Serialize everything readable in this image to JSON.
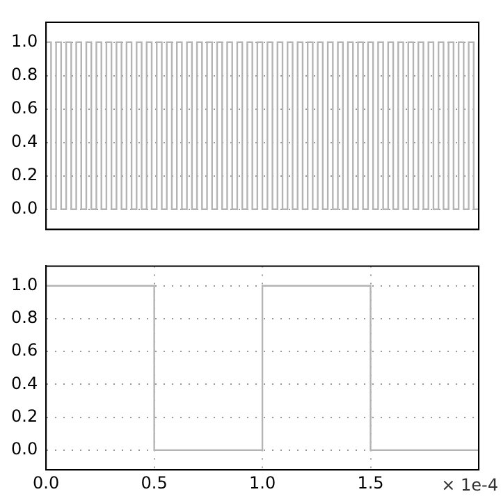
{
  "chart_data": [
    {
      "type": "step",
      "categories": [
        null,
        null,
        null,
        null,
        null,
        null,
        null,
        null,
        null,
        null,
        null,
        null,
        null,
        null,
        null,
        null,
        null,
        null,
        null,
        null,
        null,
        null,
        null,
        null,
        null,
        null,
        null,
        null,
        null,
        null,
        null,
        null,
        null,
        null,
        null,
        null,
        null,
        null,
        null,
        null,
        null,
        null,
        null,
        null,
        null,
        null,
        null,
        null,
        null,
        null,
        null,
        null,
        null,
        null,
        null,
        null,
        null,
        null,
        null,
        null,
        null,
        null,
        null,
        null,
        null,
        null,
        null,
        null,
        null,
        null,
        null,
        null,
        null,
        null,
        null,
        null,
        null,
        null,
        null,
        null,
        null,
        null,
        null,
        null,
        null,
        null,
        null
      ],
      "series": [
        {
          "color": "#b4b4b4",
          "values": [
            1,
            0,
            1,
            0,
            1,
            0,
            1,
            0,
            1,
            0,
            1,
            0,
            1,
            0,
            1,
            0,
            1,
            0,
            1,
            0,
            1,
            0,
            1,
            0,
            1,
            0,
            1,
            0,
            1,
            0,
            1,
            0,
            1,
            0,
            1,
            0,
            1,
            0,
            1,
            0,
            1,
            0,
            1,
            0,
            1,
            0,
            1,
            0,
            1,
            0,
            1,
            0,
            1,
            0,
            1,
            0,
            1,
            0,
            1,
            0,
            1,
            0,
            1,
            0,
            1,
            0,
            1,
            0,
            1,
            0,
            1,
            0,
            1,
            0,
            1,
            0,
            1,
            0,
            1,
            0,
            1,
            0,
            1,
            0,
            1,
            0,
            1
          ]
        }
      ],
      "ylim": [
        -0.12,
        1.12
      ],
      "yticks": [
        {
          "value": 0,
          "label": "0.0"
        },
        {
          "value": 0.2,
          "label": "0.2"
        },
        {
          "value": 0.4,
          "label": "0.4"
        },
        {
          "value": 0.6,
          "label": "0.6"
        },
        {
          "value": 0.8,
          "label": "0.8"
        },
        {
          "value": 1,
          "label": "1.0"
        }
      ],
      "grid": "y",
      "tick_labels": "y",
      "legend": false
    },
    {
      "type": "step",
      "x": [
        0,
        0.5,
        1,
        1.5,
        2
      ],
      "series": [
        {
          "color": "#b4b4b4",
          "values": [
            1,
            0,
            1,
            0,
            0
          ]
        }
      ],
      "xlim": [
        0,
        2
      ],
      "xticks": [
        {
          "value": 0,
          "label": "0.0"
        },
        {
          "value": 0.5,
          "label": "0.5"
        },
        {
          "value": 1,
          "label": "1.0"
        },
        {
          "value": 1.5,
          "label": "1.5"
        },
        {
          "value": 2,
          "label": null
        }
      ],
      "ylim": [
        -0.12,
        1.12
      ],
      "yticks": [
        {
          "value": 0,
          "label": "0.0"
        },
        {
          "value": 0.2,
          "label": "0.2"
        },
        {
          "value": 0.4,
          "label": "0.4"
        },
        {
          "value": 0.6,
          "label": "0.6"
        },
        {
          "value": 0.8,
          "label": "0.8"
        },
        {
          "value": 1,
          "label": "1.0"
        }
      ],
      "grid": true,
      "legend": false,
      "annotations": [
        "× 1e-4"
      ]
    }
  ]
}
